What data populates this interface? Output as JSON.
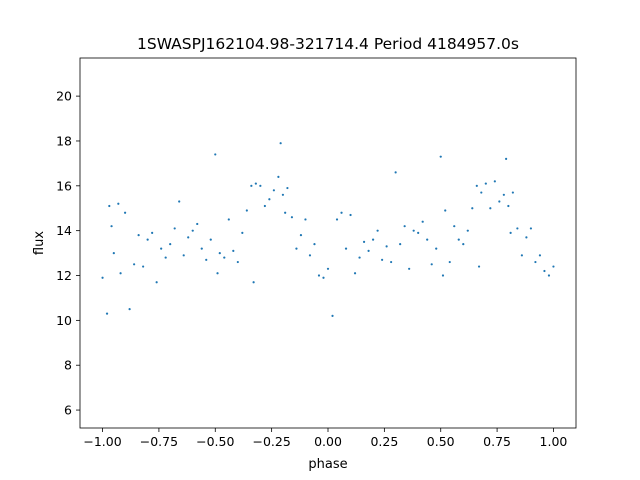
{
  "chart_data": {
    "type": "scatter",
    "title": "1SWASPJ162104.98-321714.4 Period 4184957.0s",
    "xlabel": "phase",
    "ylabel": "flux",
    "xlim": [
      -1.1,
      1.1
    ],
    "ylim": [
      5.2,
      21.7
    ],
    "xticks": [
      -1.0,
      -0.75,
      -0.5,
      -0.25,
      0.0,
      0.25,
      0.5,
      0.75,
      1.0
    ],
    "xtick_labels": [
      "−1.00",
      "−0.75",
      "−0.50",
      "−0.25",
      "0.00",
      "0.25",
      "0.50",
      "0.75",
      "1.00"
    ],
    "yticks": [
      6,
      8,
      10,
      12,
      14,
      16,
      18,
      20
    ],
    "ytick_labels": [
      "6",
      "8",
      "10",
      "12",
      "14",
      "16",
      "18",
      "20"
    ],
    "grid": false,
    "point_color": "#1f77b4",
    "series": [
      {
        "x": [
          -1.0,
          -0.98,
          -0.97,
          -0.96,
          -0.95,
          -0.93,
          -0.92,
          -0.9,
          -0.88,
          -0.86,
          -0.84,
          -0.82,
          -0.8,
          -0.78,
          -0.76,
          -0.74,
          -0.72,
          -0.7,
          -0.68,
          -0.66,
          -0.64,
          -0.62,
          -0.6,
          -0.58,
          -0.56,
          -0.54,
          -0.52,
          -0.5,
          -0.49,
          -0.48,
          -0.46,
          -0.44,
          -0.42,
          -0.4,
          -0.38,
          -0.36,
          -0.34,
          -0.33,
          -0.32,
          -0.3,
          -0.28,
          -0.26,
          -0.24,
          -0.22,
          -0.21,
          -0.2,
          -0.19,
          -0.18,
          -0.16,
          -0.14,
          -0.12,
          -0.1,
          -0.08,
          -0.06,
          -0.04,
          -0.02,
          0.0,
          0.02,
          0.04,
          0.06,
          0.08,
          0.1,
          0.12,
          0.14,
          0.16,
          0.18,
          0.2,
          0.22,
          0.24,
          0.26,
          0.28,
          0.3,
          0.32,
          0.34,
          0.36,
          0.38,
          0.4,
          0.42,
          0.44,
          0.46,
          0.48,
          0.5,
          0.51,
          0.52,
          0.54,
          0.56,
          0.58,
          0.6,
          0.62,
          0.64,
          0.66,
          0.67,
          0.68,
          0.7,
          0.72,
          0.74,
          0.76,
          0.78,
          0.79,
          0.8,
          0.81,
          0.82,
          0.84,
          0.86,
          0.88,
          0.9,
          0.92,
          0.94,
          0.96,
          0.98,
          1.0
        ],
        "y": [
          11.9,
          10.3,
          15.1,
          14.2,
          13.0,
          15.2,
          12.1,
          14.8,
          10.5,
          12.5,
          13.8,
          12.4,
          13.6,
          13.9,
          11.7,
          13.2,
          12.8,
          13.4,
          14.1,
          15.3,
          12.9,
          13.7,
          14.0,
          14.3,
          13.2,
          12.7,
          13.6,
          17.4,
          12.1,
          13.0,
          12.8,
          14.5,
          13.1,
          12.6,
          13.9,
          14.9,
          16.0,
          11.7,
          16.1,
          16.0,
          15.1,
          15.4,
          15.8,
          16.4,
          17.9,
          15.6,
          14.8,
          15.9,
          14.6,
          13.2,
          13.8,
          14.5,
          12.9,
          13.4,
          12.0,
          11.9,
          12.3,
          10.2,
          14.5,
          14.8,
          13.2,
          14.7,
          12.1,
          12.8,
          13.5,
          13.1,
          13.6,
          14.0,
          12.7,
          13.3,
          12.6,
          16.6,
          13.4,
          14.2,
          12.3,
          14.0,
          13.9,
          14.4,
          13.6,
          12.5,
          13.2,
          17.3,
          12.0,
          14.9,
          12.6,
          14.2,
          13.6,
          13.4,
          14.0,
          15.0,
          16.0,
          12.4,
          15.7,
          16.1,
          15.0,
          16.2,
          15.3,
          15.6,
          17.2,
          15.1,
          13.9,
          15.7,
          14.1,
          12.9,
          13.7,
          14.1,
          12.6,
          12.9,
          12.2,
          12.0,
          12.4
        ]
      }
    ]
  }
}
